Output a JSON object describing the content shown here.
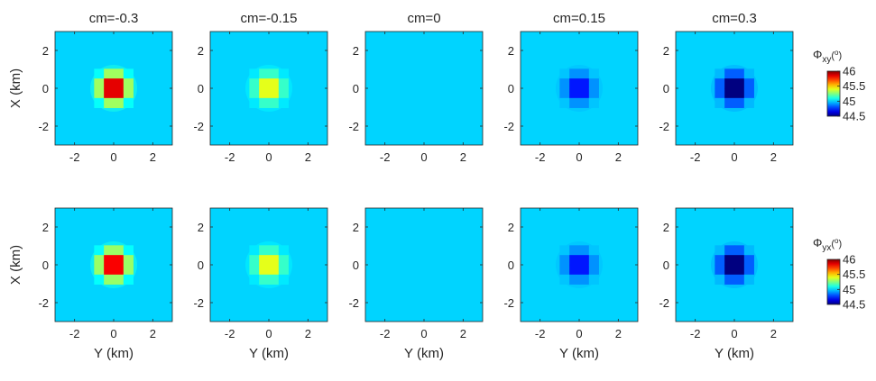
{
  "chart_data": {
    "type": "heatmap",
    "colormap": "jet",
    "color_range": [
      44.5,
      46
    ],
    "background_value": 45,
    "x_range": [
      -3,
      3
    ],
    "y_range": [
      -3,
      3
    ],
    "ticks": [
      -2,
      0,
      2
    ],
    "tick_labels": [
      "-2",
      "0",
      "2"
    ],
    "anomaly_center": [
      0,
      0
    ],
    "columns": [
      {
        "title": "cm=-0.3",
        "cm": -0.3
      },
      {
        "title": "cm=-0.15",
        "cm": -0.15
      },
      {
        "title": "cm=0",
        "cm": 0
      },
      {
        "title": "cm=0.15",
        "cm": 0.15
      },
      {
        "title": "cm=0.3",
        "cm": 0.3
      }
    ],
    "rows": [
      {
        "component": "xy",
        "ylabel": "X (km)",
        "xlabel": "",
        "peak_values": [
          45.85,
          45.4,
          45.0,
          44.72,
          44.5
        ],
        "colorbar": {
          "symbol": "Φ",
          "subscript": "xy",
          "unit": "(",
          "unit_sup": "o",
          "unit_close": ")",
          "ticks": [
            "46",
            "45.5",
            "45",
            "44.5"
          ]
        }
      },
      {
        "component": "yx",
        "ylabel": "X (km)",
        "xlabel": "Y (km)",
        "peak_values": [
          45.82,
          45.4,
          45.0,
          44.72,
          44.5
        ],
        "colorbar": {
          "symbol": "Φ",
          "subscript": "yx",
          "unit": "(",
          "unit_sup": "o",
          "unit_close": ")",
          "ticks": [
            "46",
            "45.5",
            "45",
            "44.5"
          ]
        }
      }
    ]
  }
}
